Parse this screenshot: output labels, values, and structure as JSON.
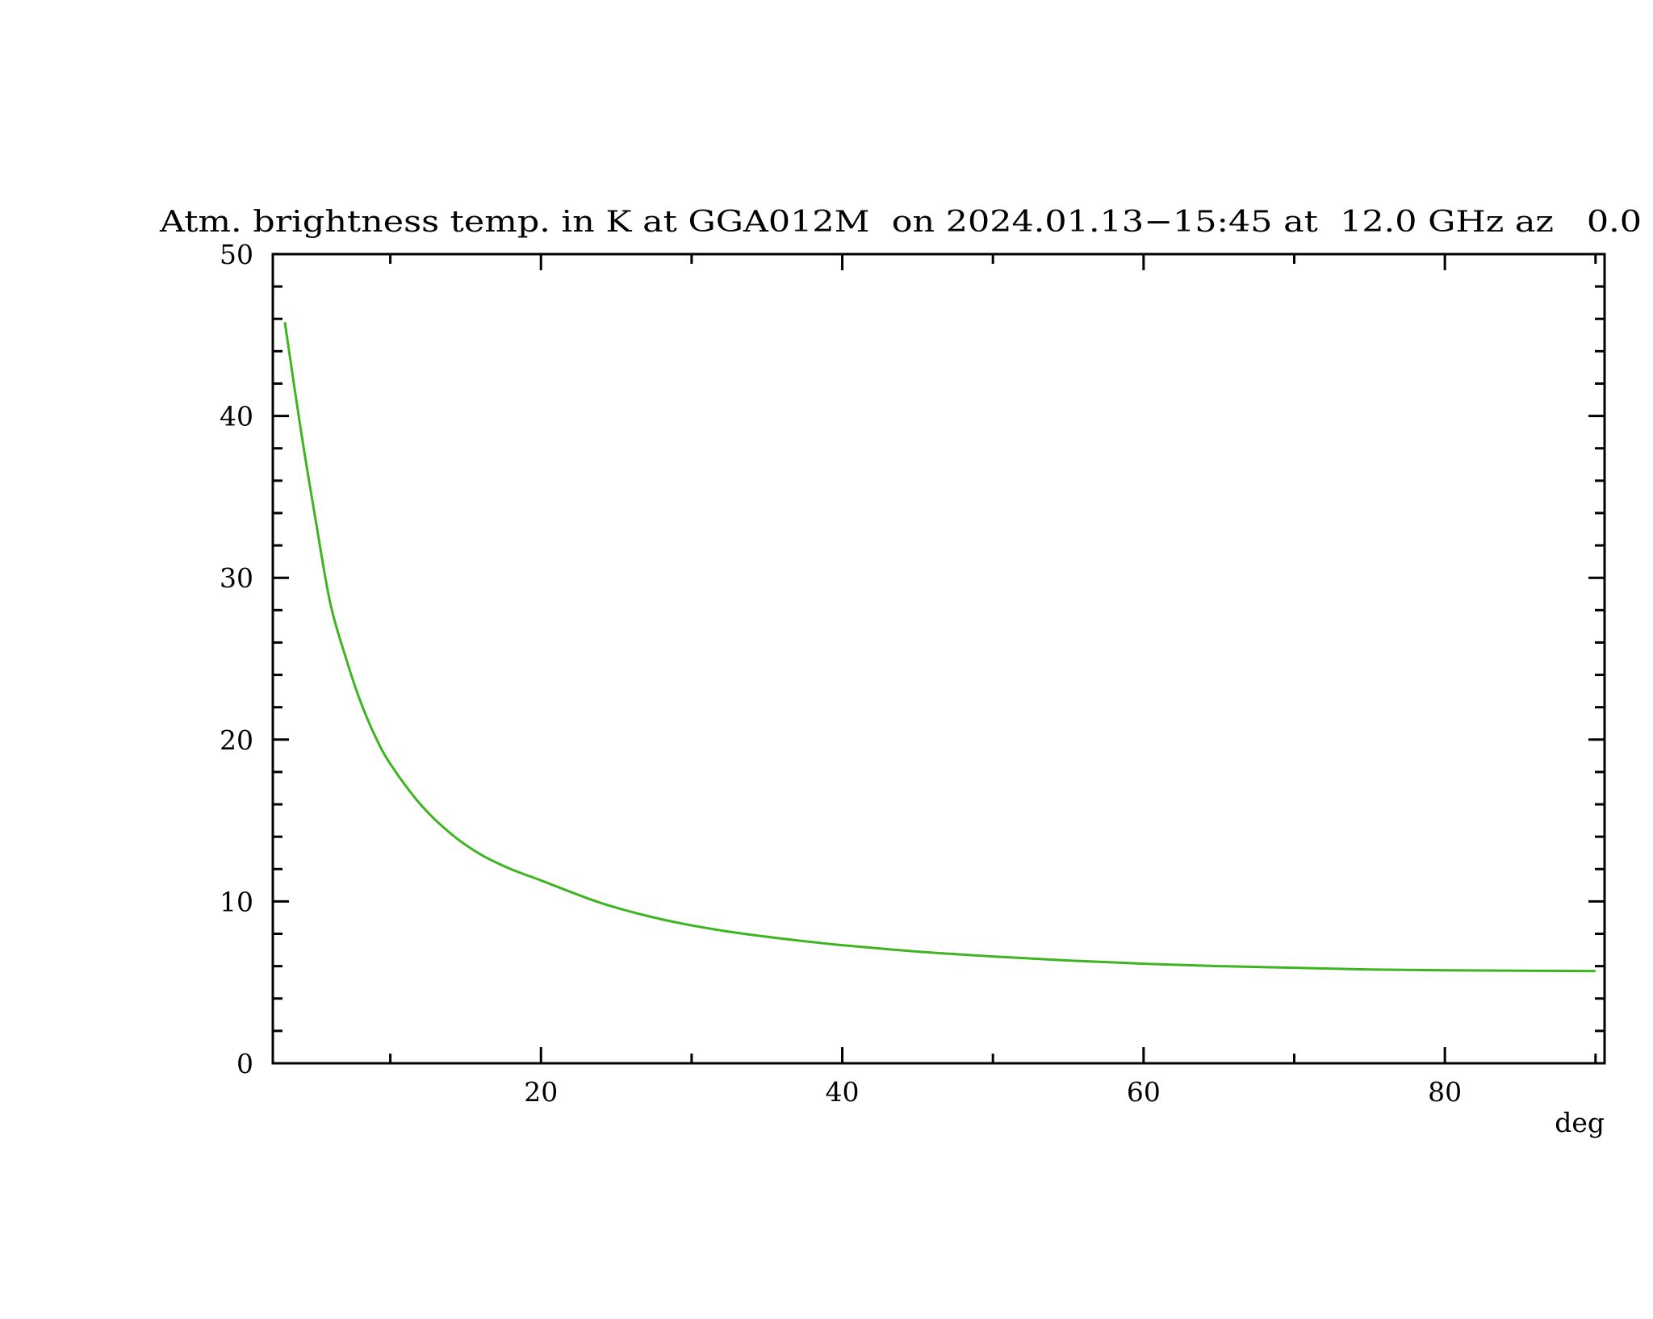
{
  "chart_data": {
    "type": "line",
    "title": "Atm. brightness temp. in K at GGA012M  on 2024.01.13−15:45 at  12.0 GHz az   0.0",
    "xlabel": "deg",
    "ylabel": "",
    "xlim": [
      2.2,
      90.6
    ],
    "ylim": [
      0,
      50
    ],
    "x_ticks": [
      20,
      40,
      60,
      80
    ],
    "x_tick_labels": [
      "20",
      "40",
      "60",
      "80"
    ],
    "x_minor_step": 10,
    "y_ticks": [
      0,
      10,
      20,
      30,
      40,
      50
    ],
    "y_tick_labels": [
      "0",
      "10",
      "20",
      "30",
      "40",
      "50"
    ],
    "y_minor_step": 2,
    "grid": false,
    "line_color": "#3cb521",
    "axis_color": "#000000",
    "series": [
      {
        "x": [
          3,
          4,
          5,
          6,
          7,
          8,
          9,
          10,
          12,
          14,
          16,
          18,
          20,
          24,
          28,
          32,
          36,
          40,
          45,
          50,
          55,
          60,
          65,
          70,
          75,
          80,
          85,
          90
        ],
        "y": [
          45.8,
          39.5,
          33.8,
          28.5,
          25.2,
          22.4,
          20.2,
          18.5,
          16.0,
          14.2,
          12.9,
          12.0,
          11.3,
          9.9,
          8.9,
          8.2,
          7.7,
          7.3,
          6.9,
          6.6,
          6.35,
          6.15,
          6.0,
          5.9,
          5.8,
          5.75,
          5.72,
          5.7
        ]
      }
    ]
  }
}
